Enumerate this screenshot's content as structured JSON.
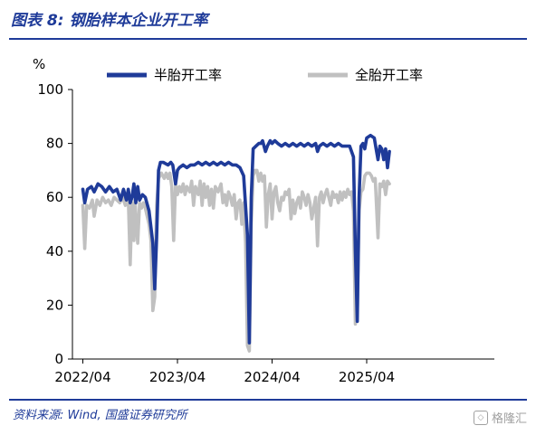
{
  "header": {
    "title": "图表 8:  钢胎样本企业开工率"
  },
  "footer": {
    "source": "资料来源: Wind, 国盛证券研究所",
    "watermark": "格隆汇"
  },
  "chart_data": {
    "type": "line",
    "title": "",
    "ylabel": "%",
    "xlabel": "",
    "ylim": [
      0,
      100
    ],
    "yticks": [
      0,
      20,
      40,
      60,
      80,
      100
    ],
    "x_ticks": [
      "2022/04",
      "2023/04",
      "2024/04",
      "2025/04"
    ],
    "x_tick_positions": [
      0,
      1,
      2,
      3
    ],
    "xlim": [
      0,
      3.25
    ],
    "legend": "top",
    "grid": false,
    "series": [
      {
        "name": "半胎开工率",
        "color": "#1f3b99",
        "points": [
          [
            0.0,
            63
          ],
          [
            0.02,
            58
          ],
          [
            0.05,
            63
          ],
          [
            0.09,
            64
          ],
          [
            0.12,
            62
          ],
          [
            0.16,
            65
          ],
          [
            0.2,
            64
          ],
          [
            0.24,
            62
          ],
          [
            0.28,
            64
          ],
          [
            0.32,
            62
          ],
          [
            0.36,
            63
          ],
          [
            0.4,
            59
          ],
          [
            0.43,
            63
          ],
          [
            0.46,
            59
          ],
          [
            0.48,
            63
          ],
          [
            0.5,
            58
          ],
          [
            0.52,
            60
          ],
          [
            0.54,
            65
          ],
          [
            0.56,
            58
          ],
          [
            0.58,
            64
          ],
          [
            0.6,
            59
          ],
          [
            0.63,
            61
          ],
          [
            0.66,
            60
          ],
          [
            0.7,
            55
          ],
          [
            0.72,
            49
          ],
          [
            0.74,
            43
          ],
          [
            0.76,
            26
          ],
          [
            0.78,
            45
          ],
          [
            0.8,
            70
          ],
          [
            0.82,
            73
          ],
          [
            0.85,
            73
          ],
          [
            0.9,
            72
          ],
          [
            0.93,
            73
          ],
          [
            0.95,
            72
          ],
          [
            0.98,
            65
          ],
          [
            1.0,
            70
          ],
          [
            1.02,
            71
          ],
          [
            1.06,
            72
          ],
          [
            1.1,
            71
          ],
          [
            1.14,
            72
          ],
          [
            1.18,
            72
          ],
          [
            1.22,
            73
          ],
          [
            1.26,
            72
          ],
          [
            1.3,
            73
          ],
          [
            1.34,
            72
          ],
          [
            1.38,
            73
          ],
          [
            1.42,
            72
          ],
          [
            1.46,
            73
          ],
          [
            1.5,
            72
          ],
          [
            1.54,
            73
          ],
          [
            1.58,
            72
          ],
          [
            1.62,
            72
          ],
          [
            1.66,
            71
          ],
          [
            1.7,
            68
          ],
          [
            1.74,
            46
          ],
          [
            1.76,
            6
          ],
          [
            1.78,
            60
          ],
          [
            1.8,
            78
          ],
          [
            1.83,
            79
          ],
          [
            1.86,
            80
          ],
          [
            1.88,
            80
          ],
          [
            1.9,
            81
          ],
          [
            1.93,
            77
          ],
          [
            1.95,
            79
          ],
          [
            1.98,
            81
          ],
          [
            2.0,
            80
          ],
          [
            2.03,
            81
          ],
          [
            2.06,
            80
          ],
          [
            2.1,
            79
          ],
          [
            2.14,
            80
          ],
          [
            2.18,
            79
          ],
          [
            2.22,
            80
          ],
          [
            2.26,
            79
          ],
          [
            2.3,
            80
          ],
          [
            2.34,
            79
          ],
          [
            2.38,
            80
          ],
          [
            2.42,
            79
          ],
          [
            2.46,
            80
          ],
          [
            2.48,
            77
          ],
          [
            2.5,
            79
          ],
          [
            2.54,
            80
          ],
          [
            2.58,
            79
          ],
          [
            2.62,
            80
          ],
          [
            2.66,
            79
          ],
          [
            2.7,
            80
          ],
          [
            2.74,
            79
          ],
          [
            2.78,
            79
          ],
          [
            2.82,
            79
          ],
          [
            2.86,
            75
          ],
          [
            2.88,
            40
          ],
          [
            2.9,
            14
          ],
          [
            2.92,
            60
          ],
          [
            2.94,
            79
          ],
          [
            2.96,
            80
          ],
          [
            2.98,
            78
          ],
          [
            3.0,
            82
          ],
          [
            3.04,
            83
          ],
          [
            3.08,
            82
          ],
          [
            3.1,
            78
          ],
          [
            3.12,
            74
          ],
          [
            3.14,
            79
          ],
          [
            3.16,
            78
          ],
          [
            3.18,
            74
          ],
          [
            3.2,
            78
          ],
          [
            3.22,
            71
          ],
          [
            3.24,
            77
          ]
        ]
      },
      {
        "name": "全胎开工率",
        "color": "#c0c0c0",
        "points": [
          [
            0.0,
            57
          ],
          [
            0.02,
            41
          ],
          [
            0.04,
            57
          ],
          [
            0.07,
            56
          ],
          [
            0.1,
            59
          ],
          [
            0.12,
            53
          ],
          [
            0.15,
            59
          ],
          [
            0.18,
            57
          ],
          [
            0.21,
            60
          ],
          [
            0.24,
            58
          ],
          [
            0.27,
            59
          ],
          [
            0.3,
            57
          ],
          [
            0.33,
            60
          ],
          [
            0.36,
            59
          ],
          [
            0.39,
            58
          ],
          [
            0.42,
            60
          ],
          [
            0.45,
            57
          ],
          [
            0.48,
            60
          ],
          [
            0.5,
            35
          ],
          [
            0.52,
            58
          ],
          [
            0.54,
            44
          ],
          [
            0.55,
            59
          ],
          [
            0.58,
            43
          ],
          [
            0.6,
            58
          ],
          [
            0.62,
            56
          ],
          [
            0.64,
            58
          ],
          [
            0.66,
            56
          ],
          [
            0.7,
            50
          ],
          [
            0.72,
            44
          ],
          [
            0.74,
            18
          ],
          [
            0.76,
            23
          ],
          [
            0.78,
            57
          ],
          [
            0.8,
            67
          ],
          [
            0.83,
            69
          ],
          [
            0.86,
            67
          ],
          [
            0.88,
            69
          ],
          [
            0.9,
            67
          ],
          [
            0.92,
            69
          ],
          [
            0.94,
            64
          ],
          [
            0.96,
            44
          ],
          [
            0.98,
            65
          ],
          [
            1.0,
            61
          ],
          [
            1.02,
            64
          ],
          [
            1.04,
            62
          ],
          [
            1.06,
            65
          ],
          [
            1.08,
            61
          ],
          [
            1.1,
            64
          ],
          [
            1.13,
            62
          ],
          [
            1.15,
            66
          ],
          [
            1.17,
            57
          ],
          [
            1.19,
            64
          ],
          [
            1.22,
            61
          ],
          [
            1.24,
            66
          ],
          [
            1.26,
            57
          ],
          [
            1.28,
            65
          ],
          [
            1.3,
            60
          ],
          [
            1.32,
            64
          ],
          [
            1.34,
            57
          ],
          [
            1.36,
            63
          ],
          [
            1.38,
            56
          ],
          [
            1.4,
            64
          ],
          [
            1.43,
            62
          ],
          [
            1.46,
            65
          ],
          [
            1.48,
            58
          ],
          [
            1.5,
            61
          ],
          [
            1.52,
            57
          ],
          [
            1.54,
            62
          ],
          [
            1.56,
            60
          ],
          [
            1.58,
            57
          ],
          [
            1.6,
            61
          ],
          [
            1.62,
            52
          ],
          [
            1.64,
            58
          ],
          [
            1.66,
            59
          ],
          [
            1.68,
            50
          ],
          [
            1.7,
            58
          ],
          [
            1.72,
            43
          ],
          [
            1.74,
            5
          ],
          [
            1.76,
            3
          ],
          [
            1.78,
            50
          ],
          [
            1.8,
            68
          ],
          [
            1.82,
            70
          ],
          [
            1.84,
            70
          ],
          [
            1.86,
            66
          ],
          [
            1.88,
            69
          ],
          [
            1.9,
            66
          ],
          [
            1.92,
            68
          ],
          [
            1.94,
            49
          ],
          [
            1.96,
            61
          ],
          [
            1.98,
            65
          ],
          [
            2.0,
            52
          ],
          [
            2.02,
            62
          ],
          [
            2.04,
            64
          ],
          [
            2.06,
            58
          ],
          [
            2.08,
            55
          ],
          [
            2.1,
            60
          ],
          [
            2.12,
            59
          ],
          [
            2.14,
            62
          ],
          [
            2.16,
            61
          ],
          [
            2.18,
            63
          ],
          [
            2.2,
            52
          ],
          [
            2.22,
            59
          ],
          [
            2.24,
            54
          ],
          [
            2.26,
            58
          ],
          [
            2.28,
            60
          ],
          [
            2.3,
            56
          ],
          [
            2.32,
            62
          ],
          [
            2.34,
            60
          ],
          [
            2.36,
            57
          ],
          [
            2.38,
            61
          ],
          [
            2.4,
            58
          ],
          [
            2.42,
            52
          ],
          [
            2.44,
            56
          ],
          [
            2.46,
            60
          ],
          [
            2.48,
            42
          ],
          [
            2.5,
            60
          ],
          [
            2.52,
            62
          ],
          [
            2.54,
            58
          ],
          [
            2.56,
            61
          ],
          [
            2.58,
            63
          ],
          [
            2.6,
            60
          ],
          [
            2.62,
            57
          ],
          [
            2.64,
            62
          ],
          [
            2.66,
            60
          ],
          [
            2.68,
            61
          ],
          [
            2.7,
            58
          ],
          [
            2.72,
            62
          ],
          [
            2.74,
            59
          ],
          [
            2.76,
            62
          ],
          [
            2.78,
            60
          ],
          [
            2.8,
            63
          ],
          [
            2.82,
            61
          ],
          [
            2.84,
            62
          ],
          [
            2.86,
            55
          ],
          [
            2.88,
            13
          ],
          [
            2.9,
            17
          ],
          [
            2.92,
            55
          ],
          [
            2.94,
            62
          ],
          [
            2.96,
            63
          ],
          [
            2.98,
            68
          ],
          [
            3.0,
            69
          ],
          [
            3.03,
            69
          ],
          [
            3.05,
            68
          ],
          [
            3.07,
            66
          ],
          [
            3.09,
            67
          ],
          [
            3.1,
            60
          ],
          [
            3.12,
            45
          ],
          [
            3.14,
            65
          ],
          [
            3.16,
            64
          ],
          [
            3.18,
            66
          ],
          [
            3.2,
            61
          ],
          [
            3.22,
            66
          ],
          [
            3.24,
            65
          ]
        ]
      }
    ]
  }
}
